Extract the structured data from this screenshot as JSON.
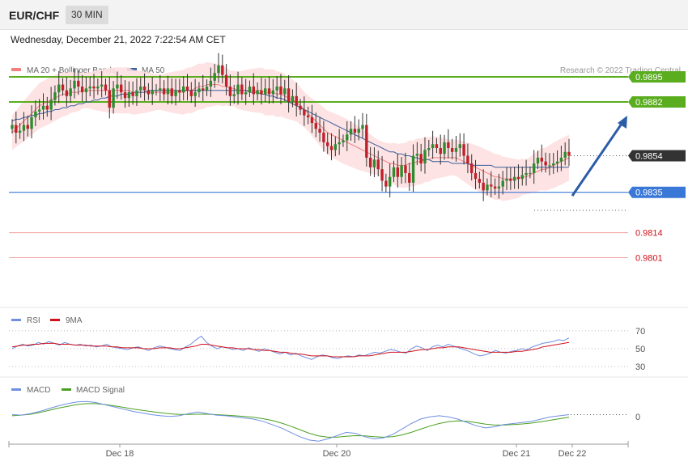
{
  "header": {
    "pair": "EUR/CHF",
    "timeframe": "30 MIN",
    "datetime": "Wednesday, December 21, 2022 7:22:54 AM CET"
  },
  "colors": {
    "ma20": "#f08080",
    "ma50": "#3a5fa0",
    "band_fill": "#fde0e0",
    "candle_up": "#2e8b2e",
    "candle_down": "#c0202a",
    "resistance": "#5aad1e",
    "support": "#3a78d8",
    "red_level": "#f0a0a0",
    "red_text": "#d0101a",
    "current": "#333333",
    "arrow": "#2b5ca8",
    "rsi": "#6f8fe0",
    "rsi_ma": "#d0101a",
    "macd": "#6f8fe0",
    "macd_signal": "#4aa020"
  },
  "chart_data": [
    {
      "type": "candlestick",
      "title": "",
      "legend": [
        {
          "name": "MA 20 + Bollinger Bands"
        },
        {
          "name": "MA 50"
        }
      ],
      "credit": "Research © 2022 Trading Central",
      "levels": [
        {
          "value": 0.9895,
          "label": "0.9895",
          "kind": "resistance"
        },
        {
          "value": 0.9882,
          "label": "0.9882",
          "kind": "resistance"
        },
        {
          "value": 0.9854,
          "label": "0.9854",
          "kind": "current"
        },
        {
          "value": 0.9835,
          "label": "0.9835",
          "kind": "support"
        },
        {
          "value": 0.9814,
          "label": "0.9814",
          "kind": "minor"
        },
        {
          "value": 0.9801,
          "label": "0.9801",
          "kind": "minor"
        }
      ],
      "ylim": [
        0.9776,
        0.9911
      ],
      "xlabels": [
        "Dec 18",
        "Dec 20",
        "Dec 21",
        "Dec 22"
      ],
      "close": [
        0.987,
        0.9866,
        0.9867,
        0.987,
        0.9868,
        0.9874,
        0.9877,
        0.9878,
        0.988,
        0.9878,
        0.9883,
        0.9887,
        0.9891,
        0.9888,
        0.9885,
        0.9889,
        0.9893,
        0.989,
        0.9887,
        0.9889,
        0.989,
        0.9889,
        0.989,
        0.9891,
        0.9888,
        0.9879,
        0.9889,
        0.9891,
        0.9887,
        0.9884,
        0.9887,
        0.9885,
        0.9888,
        0.989,
        0.9888,
        0.9886,
        0.9888,
        0.9888,
        0.9889,
        0.9886,
        0.9889,
        0.9885,
        0.9888,
        0.9887,
        0.989,
        0.9888,
        0.9885,
        0.9887,
        0.9889,
        0.9888,
        0.989,
        0.9893,
        0.9897,
        0.9901,
        0.9896,
        0.989,
        0.9885,
        0.9886,
        0.9891,
        0.9886,
        0.9887,
        0.989,
        0.9886,
        0.9888,
        0.9886,
        0.9889,
        0.9886,
        0.9888,
        0.989,
        0.9886,
        0.9889,
        0.9882,
        0.9885,
        0.988,
        0.9878,
        0.9875,
        0.9874,
        0.9871,
        0.9868,
        0.9866,
        0.9861,
        0.9859,
        0.9857,
        0.986,
        0.9861,
        0.9862,
        0.9865,
        0.9868,
        0.9866,
        0.9868,
        0.987,
        0.9853,
        0.9848,
        0.9852,
        0.9847,
        0.9841,
        0.9838,
        0.9843,
        0.9848,
        0.9843,
        0.9849,
        0.9845,
        0.984,
        0.9854,
        0.9855,
        0.985,
        0.9857,
        0.9858,
        0.986,
        0.9858,
        0.9855,
        0.9861,
        0.9858,
        0.9856,
        0.9858,
        0.986,
        0.9854,
        0.985,
        0.9845,
        0.9842,
        0.984,
        0.9836,
        0.9839,
        0.9838,
        0.9837,
        0.9838,
        0.9841,
        0.9842,
        0.9841,
        0.9843,
        0.9842,
        0.9844,
        0.9845,
        0.9845,
        0.985,
        0.9853,
        0.9851,
        0.9849,
        0.9849,
        0.985,
        0.9851,
        0.9853,
        0.9856,
        0.9854
      ],
      "ma20": [
        0.9866,
        0.9868,
        0.987,
        0.9872,
        0.9874,
        0.9876,
        0.9878,
        0.988,
        0.9881,
        0.9882,
        0.9883,
        0.9884,
        0.9885,
        0.9886,
        0.9886,
        0.9887,
        0.9887,
        0.9887,
        0.9888,
        0.9888,
        0.9888,
        0.9888,
        0.9888,
        0.9888,
        0.9888,
        0.9888,
        0.9888,
        0.9888,
        0.9888,
        0.9888,
        0.9888,
        0.9887,
        0.9887,
        0.9887,
        0.9887,
        0.9887,
        0.9887,
        0.9887,
        0.9887,
        0.9887,
        0.9887,
        0.9887,
        0.9887,
        0.9887,
        0.9887,
        0.9888,
        0.9888,
        0.9889,
        0.989,
        0.989,
        0.9891,
        0.9891,
        0.9891,
        0.9891,
        0.989,
        0.989,
        0.9889,
        0.9889,
        0.9888,
        0.9888,
        0.9888,
        0.9888,
        0.9888,
        0.9888,
        0.9888,
        0.9887,
        0.9887,
        0.9887,
        0.9886,
        0.9886,
        0.9885,
        0.9884,
        0.9883,
        0.9882,
        0.988,
        0.9878,
        0.9876,
        0.9874,
        0.9872,
        0.987,
        0.9868,
        0.9866,
        0.9865,
        0.9864,
        0.9863,
        0.9862,
        0.9861,
        0.986,
        0.9859,
        0.9858,
        0.9857,
        0.9856,
        0.9855,
        0.9854,
        0.9853,
        0.9852,
        0.9851,
        0.985,
        0.985,
        0.9849,
        0.9849,
        0.9849,
        0.985,
        0.985,
        0.9851,
        0.9851,
        0.9852,
        0.9852,
        0.9853,
        0.9853,
        0.9853,
        0.9853,
        0.9853,
        0.9853,
        0.9853,
        0.9852,
        0.9851,
        0.985,
        0.9849,
        0.9848,
        0.9847,
        0.9846,
        0.9845,
        0.9844,
        0.9843,
        0.9843,
        0.9842,
        0.9842,
        0.9842,
        0.9842,
        0.9842,
        0.9843,
        0.9843,
        0.9844,
        0.9845,
        0.9846,
        0.9847,
        0.9847,
        0.9848,
        0.9849,
        0.985,
        0.9851,
        0.9852,
        0.9853
      ],
      "ma50": [
        0.9872,
        0.9873,
        0.9873,
        0.9874,
        0.9874,
        0.9875,
        0.9875,
        0.9876,
        0.9876,
        0.9877,
        0.9877,
        0.9878,
        0.9878,
        0.9879,
        0.9879,
        0.988,
        0.988,
        0.9881,
        0.9881,
        0.9882,
        0.9882,
        0.9883,
        0.9883,
        0.9884,
        0.9884,
        0.9885,
        0.9885,
        0.9885,
        0.9886,
        0.9886,
        0.9886,
        0.9887,
        0.9887,
        0.9887,
        0.9887,
        0.9888,
        0.9888,
        0.9888,
        0.9888,
        0.9888,
        0.9888,
        0.9888,
        0.9888,
        0.9888,
        0.9888,
        0.9888,
        0.9888,
        0.9888,
        0.9888,
        0.9888,
        0.9888,
        0.9888,
        0.9888,
        0.9888,
        0.9888,
        0.9888,
        0.9888,
        0.9888,
        0.9888,
        0.9888,
        0.9888,
        0.9887,
        0.9887,
        0.9887,
        0.9886,
        0.9886,
        0.9885,
        0.9885,
        0.9884,
        0.9884,
        0.9883,
        0.9882,
        0.9881,
        0.988,
        0.9879,
        0.9878,
        0.9877,
        0.9876,
        0.9875,
        0.9874,
        0.9873,
        0.9872,
        0.9871,
        0.987,
        0.9869,
        0.9868,
        0.9867,
        0.9866,
        0.9865,
        0.9864,
        0.9863,
        0.9862,
        0.9861,
        0.986,
        0.9859,
        0.9858,
        0.9857,
        0.9856,
        0.9856,
        0.9855,
        0.9855,
        0.9854,
        0.9854,
        0.9853,
        0.9853,
        0.9852,
        0.9852,
        0.9852,
        0.9851,
        0.9851,
        0.9851,
        0.9851,
        0.9851,
        0.985,
        0.985,
        0.985,
        0.985,
        0.985,
        0.9849,
        0.9849,
        0.9849,
        0.9849,
        0.9849,
        0.9849,
        0.9848,
        0.9848,
        0.9848,
        0.9848,
        0.9848,
        0.9848,
        0.9848,
        0.9848,
        0.9848,
        0.9848,
        0.9848,
        0.9848,
        0.9848,
        0.9848,
        0.9848,
        0.9848,
        0.9848,
        0.9848,
        0.9848,
        0.9848
      ]
    },
    {
      "type": "line",
      "title": "",
      "legend": [
        {
          "name": "RSI"
        },
        {
          "name": "9MA"
        }
      ],
      "ticks": [
        "70",
        "50",
        "30"
      ],
      "ylim": [
        22,
        78
      ],
      "rsi": [
        50,
        53,
        55,
        53,
        54,
        57,
        55,
        58,
        56,
        54,
        57,
        55,
        54,
        55,
        53,
        54,
        52,
        53,
        55,
        52,
        51,
        50,
        49,
        51,
        52,
        50,
        48,
        51,
        53,
        52,
        50,
        49,
        48,
        52,
        55,
        60,
        64,
        57,
        53,
        50,
        52,
        51,
        49,
        50,
        48,
        51,
        49,
        47,
        50,
        48,
        46,
        44,
        46,
        43,
        45,
        42,
        40,
        38,
        41,
        43,
        42,
        40,
        39,
        41,
        42,
        41,
        43,
        42,
        44,
        46,
        45,
        47,
        49,
        48,
        46,
        45,
        50,
        53,
        51,
        48,
        52,
        54,
        52,
        55,
        53,
        51,
        49,
        47,
        44,
        42,
        43,
        45,
        48,
        46,
        45,
        47,
        48,
        50,
        49,
        52,
        54,
        56,
        57,
        58,
        60,
        59,
        62
      ],
      "ma9": [
        52,
        53,
        54,
        54,
        55,
        55,
        56,
        56,
        56,
        55,
        55,
        55,
        54,
        54,
        54,
        53,
        53,
        53,
        53,
        52,
        52,
        51,
        51,
        51,
        51,
        50,
        50,
        50,
        51,
        51,
        51,
        50,
        50,
        51,
        52,
        53,
        55,
        55,
        54,
        53,
        52,
        51,
        51,
        50,
        50,
        50,
        49,
        49,
        48,
        48,
        47,
        46,
        46,
        45,
        44,
        44,
        43,
        42,
        42,
        42,
        42,
        41,
        41,
        41,
        41,
        41,
        42,
        42,
        42,
        43,
        44,
        45,
        46,
        46,
        46,
        46,
        47,
        48,
        49,
        49,
        50,
        51,
        51,
        52,
        52,
        52,
        51,
        50,
        49,
        48,
        47,
        46,
        46,
        46,
        46,
        46,
        47,
        47,
        48,
        49,
        50,
        52,
        53,
        54,
        55,
        56,
        57
      ]
    },
    {
      "type": "line",
      "title": "",
      "legend": [
        {
          "name": "MACD"
        },
        {
          "name": "MACD Signal"
        }
      ],
      "ticks": [
        "0"
      ],
      "ylim": [
        -1.2,
        1.0
      ],
      "macd": [
        0.1,
        0.08,
        0.15,
        0.25,
        0.38,
        0.5,
        0.6,
        0.68,
        0.7,
        0.65,
        0.55,
        0.45,
        0.35,
        0.25,
        0.18,
        0.1,
        0.05,
        0.02,
        0.05,
        0.15,
        0.22,
        0.15,
        0.08,
        0.05,
        0.0,
        -0.05,
        -0.1,
        -0.2,
        -0.35,
        -0.5,
        -0.7,
        -0.9,
        -1.05,
        -1.1,
        -1.0,
        -0.85,
        -0.7,
        -0.75,
        -0.9,
        -1.0,
        -0.95,
        -0.8,
        -0.55,
        -0.3,
        -0.1,
        0.0,
        0.05,
        0.0,
        -0.1,
        -0.25,
        -0.4,
        -0.5,
        -0.45,
        -0.35,
        -0.3,
        -0.25,
        -0.2,
        -0.1,
        0.0,
        0.05,
        0.1
      ],
      "signal": [
        0.05,
        0.08,
        0.12,
        0.2,
        0.3,
        0.4,
        0.48,
        0.56,
        0.6,
        0.6,
        0.56,
        0.5,
        0.43,
        0.36,
        0.3,
        0.24,
        0.19,
        0.14,
        0.11,
        0.11,
        0.12,
        0.12,
        0.1,
        0.08,
        0.05,
        0.02,
        -0.02,
        -0.08,
        -0.16,
        -0.28,
        -0.42,
        -0.58,
        -0.74,
        -0.86,
        -0.92,
        -0.92,
        -0.88,
        -0.85,
        -0.86,
        -0.9,
        -0.92,
        -0.9,
        -0.82,
        -0.7,
        -0.56,
        -0.42,
        -0.3,
        -0.22,
        -0.18,
        -0.2,
        -0.26,
        -0.33,
        -0.37,
        -0.37,
        -0.35,
        -0.32,
        -0.28,
        -0.22,
        -0.15,
        -0.08,
        -0.02
      ]
    }
  ]
}
